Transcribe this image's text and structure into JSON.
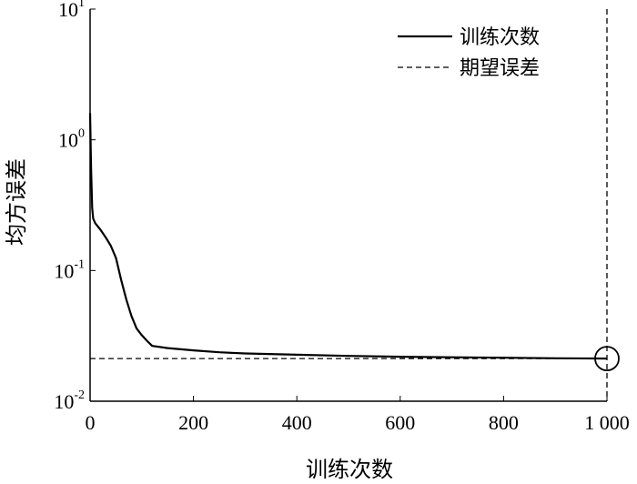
{
  "chart_data": {
    "type": "line",
    "xlabel": "训练次数",
    "ylabel": "均方误差",
    "yscale": "log",
    "xlim": [
      0,
      1000
    ],
    "ylim": [
      0.01,
      10
    ],
    "x_ticks": [
      0,
      200,
      400,
      600,
      800,
      1000
    ],
    "x_tick_labels": [
      "0",
      "200",
      "400",
      "600",
      "800",
      "1 000"
    ],
    "y_ticks": [
      10,
      1,
      0.1,
      0.01
    ],
    "y_tick_bases": [
      "10",
      "10",
      "10",
      "10"
    ],
    "y_tick_exponents": [
      "1",
      "0",
      "-1",
      "-2"
    ],
    "grid": false,
    "legend_position": "top-right",
    "series": [
      {
        "name": "训练次数",
        "style": "solid",
        "x": [
          0,
          2,
          4,
          6,
          10,
          20,
          30,
          40,
          50,
          60,
          70,
          80,
          90,
          100,
          110,
          120,
          150,
          200,
          250,
          300,
          400,
          500,
          600,
          700,
          800,
          900,
          1000
        ],
        "y": [
          1.6,
          0.6,
          0.3,
          0.25,
          0.23,
          0.205,
          0.18,
          0.155,
          0.125,
          0.085,
          0.06,
          0.045,
          0.036,
          0.032,
          0.029,
          0.0265,
          0.0255,
          0.0245,
          0.0237,
          0.0232,
          0.0227,
          0.0222,
          0.0219,
          0.0217,
          0.0215,
          0.0213,
          0.0212
        ]
      },
      {
        "name": "期望误差",
        "style": "dashed",
        "x": [
          0,
          1000
        ],
        "y": [
          0.0212,
          0.0212
        ]
      }
    ],
    "annotations": [
      {
        "type": "circle",
        "x": 1000,
        "y": 0.0212
      },
      {
        "type": "vertical-dashed-line",
        "x": 1000
      }
    ]
  }
}
